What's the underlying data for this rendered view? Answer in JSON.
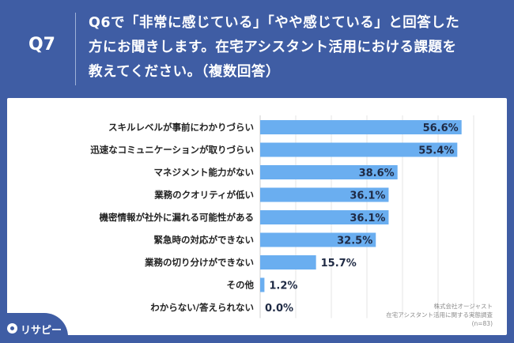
{
  "header": {
    "q_number": "Q7",
    "question_lines": [
      "Q6で「非常に感じている」「やや感じている」と回答した",
      "方にお聞きします。在宅アシスタント活用における課題を",
      "教えてください。（複数回答）"
    ]
  },
  "chart_data": {
    "type": "bar",
    "orientation": "horizontal",
    "categories": [
      "スキルレベルが事前にわかりづらい",
      "迅速なコミュニケーションが取りづらい",
      "マネジメント能力がない",
      "業務のクオリティが低い",
      "機密情報が社外に漏れる可能性がある",
      "緊急時の対応ができない",
      "業務の切り分けができない",
      "その他",
      "わからない/答えられない"
    ],
    "values": [
      56.6,
      55.4,
      38.6,
      36.1,
      36.1,
      32.5,
      15.7,
      1.2,
      0.0
    ],
    "value_labels": [
      "56.6%",
      "55.4%",
      "38.6%",
      "36.1%",
      "36.1%",
      "32.5%",
      "15.7%",
      "1.2%",
      "0.0%"
    ],
    "xlim": [
      0,
      60
    ],
    "grid": true,
    "bar_color": "#6aaef0"
  },
  "note": {
    "lines": [
      "株式会社オージャスト",
      "在宅アシスタント活用に関する実態調査",
      "(n=83)"
    ]
  },
  "logo": {
    "text": "リサピー"
  },
  "colors": {
    "background": "#3f5da4",
    "panel": "#ffffff",
    "bar": "#6aaef0"
  }
}
